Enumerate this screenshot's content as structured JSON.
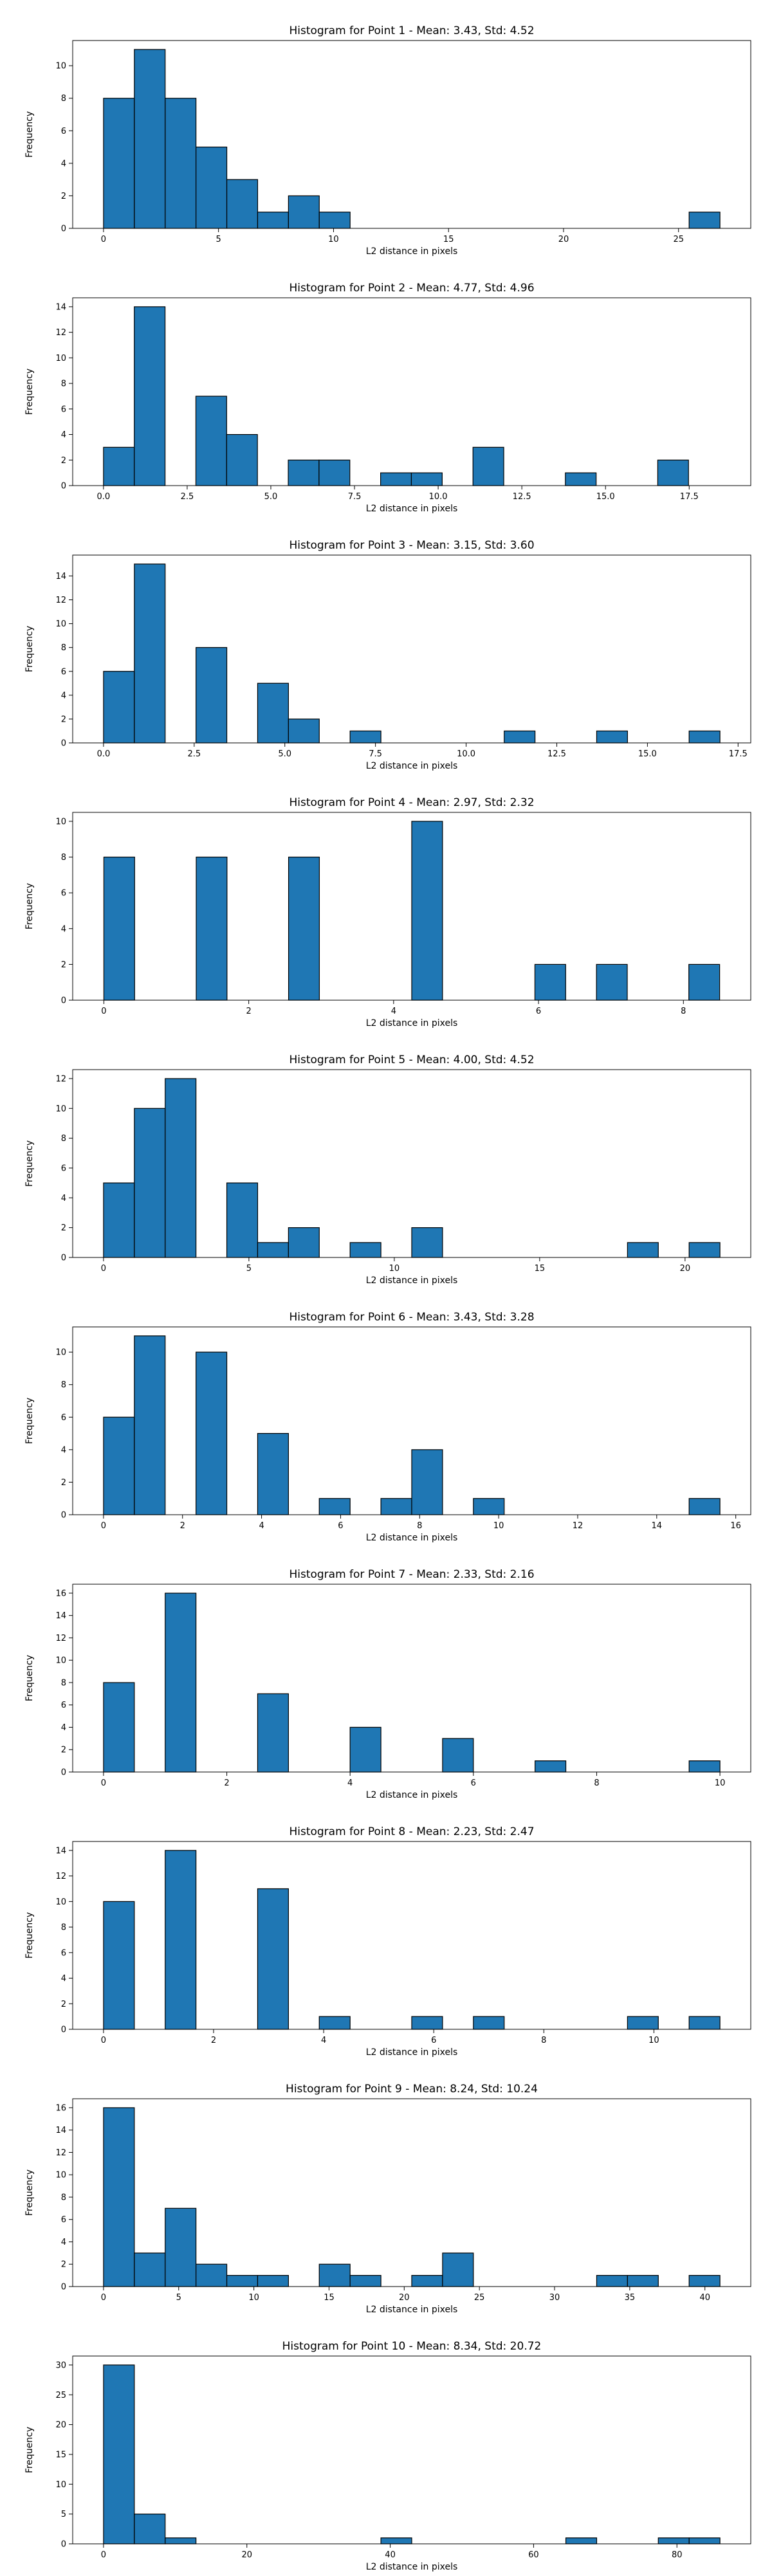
{
  "figure": {
    "bar_color": "#1f77b4",
    "edge_color": "#000000"
  },
  "chart_data": [
    {
      "type": "bar",
      "title": "Histogram for Point 1 - Mean: 3.43, Std: 4.52",
      "xlabel": "L2 distance in pixels",
      "ylabel": "Frequency",
      "xlim": [
        -1.34,
        28.14
      ],
      "ylim": [
        0,
        11.55
      ],
      "xticks": [
        0,
        5,
        10,
        15,
        20,
        25
      ],
      "xtick_labels": [
        "0",
        "5",
        "10",
        "15",
        "20",
        "25"
      ],
      "yticks": [
        0,
        2,
        4,
        6,
        8,
        10
      ],
      "ytick_labels": [
        "0",
        "2",
        "4",
        "6",
        "8",
        "10"
      ],
      "bin_edges": [
        0,
        1.34,
        2.68,
        4.02,
        5.36,
        6.7,
        8.04,
        9.38,
        10.72,
        12.06,
        13.4,
        14.74,
        16.08,
        17.42,
        18.76,
        20.1,
        21.44,
        22.78,
        24.12,
        25.46,
        26.8
      ],
      "values": [
        8,
        11,
        8,
        5,
        3,
        1,
        2,
        1,
        0,
        0,
        0,
        0,
        0,
        0,
        0,
        0,
        0,
        0,
        0,
        1
      ]
    },
    {
      "type": "bar",
      "title": "Histogram for Point 2 - Mean: 4.77, Std: 4.96",
      "xlabel": "L2 distance in pixels",
      "ylabel": "Frequency",
      "xlim": [
        -0.92,
        19.34
      ],
      "ylim": [
        0,
        14.7
      ],
      "xticks": [
        0,
        2.5,
        5,
        7.5,
        10,
        12.5,
        15,
        17.5
      ],
      "xtick_labels": [
        "0.0",
        "2.5",
        "5.0",
        "7.5",
        "10.0",
        "12.5",
        "15.0",
        "17.5"
      ],
      "yticks": [
        0,
        2,
        4,
        6,
        8,
        10,
        12,
        14
      ],
      "ytick_labels": [
        "0",
        "2",
        "4",
        "6",
        "8",
        "10",
        "12",
        "14"
      ],
      "bin_edges": [
        0,
        0.92,
        1.84,
        2.76,
        3.68,
        4.6,
        5.52,
        6.44,
        7.36,
        8.28,
        9.2,
        10.12,
        11.04,
        11.96,
        12.88,
        13.8,
        14.72,
        15.64,
        16.56,
        17.48,
        18.4
      ],
      "values": [
        3,
        14,
        0,
        7,
        4,
        0,
        2,
        2,
        0,
        1,
        1,
        0,
        3,
        0,
        0,
        1,
        0,
        0,
        2,
        0
      ]
    },
    {
      "type": "bar",
      "title": "Histogram for Point 3 - Mean: 3.15, Std: 3.60",
      "xlabel": "L2 distance in pixels",
      "ylabel": "Frequency",
      "xlim": [
        -0.85,
        17.85
      ],
      "ylim": [
        0,
        15.75
      ],
      "xticks": [
        0,
        2.5,
        5,
        7.5,
        10,
        12.5,
        15,
        17.5
      ],
      "xtick_labels": [
        "0.0",
        "2.5",
        "5.0",
        "7.5",
        "10.0",
        "12.5",
        "15.0",
        "17.5"
      ],
      "yticks": [
        0,
        2,
        4,
        6,
        8,
        10,
        12,
        14
      ],
      "ytick_labels": [
        "0",
        "2",
        "4",
        "6",
        "8",
        "10",
        "12",
        "14"
      ],
      "bin_edges": [
        0,
        0.85,
        1.7,
        2.55,
        3.4,
        4.25,
        5.1,
        5.95,
        6.8,
        7.65,
        8.5,
        9.35,
        10.2,
        11.05,
        11.9,
        12.75,
        13.6,
        14.45,
        15.3,
        16.15,
        17.0
      ],
      "values": [
        6,
        15,
        0,
        8,
        0,
        5,
        2,
        0,
        1,
        0,
        0,
        0,
        0,
        1,
        0,
        0,
        1,
        0,
        0,
        1
      ]
    },
    {
      "type": "bar",
      "title": "Histogram for Point 4 - Mean: 2.97, Std: 2.32",
      "xlabel": "L2 distance in pixels",
      "ylabel": "Frequency",
      "xlim": [
        -0.43,
        8.93
      ],
      "ylim": [
        0,
        10.5
      ],
      "xticks": [
        0,
        2,
        4,
        6,
        8
      ],
      "xtick_labels": [
        "0",
        "2",
        "4",
        "6",
        "8"
      ],
      "yticks": [
        0,
        2,
        4,
        6,
        8,
        10
      ],
      "ytick_labels": [
        "0",
        "2",
        "4",
        "6",
        "8",
        "10"
      ],
      "bin_edges": [
        0,
        0.425,
        0.85,
        1.275,
        1.7,
        2.125,
        2.55,
        2.975,
        3.4,
        3.825,
        4.25,
        4.675,
        5.1,
        5.525,
        5.95,
        6.375,
        6.8,
        7.225,
        7.65,
        8.075,
        8.5
      ],
      "values": [
        8,
        0,
        0,
        8,
        0,
        0,
        8,
        0,
        0,
        0,
        10,
        0,
        0,
        0,
        2,
        0,
        2,
        0,
        0,
        2
      ]
    },
    {
      "type": "bar",
      "title": "Histogram for Point 5 - Mean: 4.00, Std: 4.52",
      "xlabel": "L2 distance in pixels",
      "ylabel": "Frequency",
      "xlim": [
        -1.06,
        22.26
      ],
      "ylim": [
        0,
        12.6
      ],
      "xticks": [
        0,
        5,
        10,
        15,
        20
      ],
      "xtick_labels": [
        "0",
        "5",
        "10",
        "15",
        "20"
      ],
      "yticks": [
        0,
        2,
        4,
        6,
        8,
        10,
        12
      ],
      "ytick_labels": [
        "0",
        "2",
        "4",
        "6",
        "8",
        "10",
        "12"
      ],
      "bin_edges": [
        0,
        1.06,
        2.12,
        3.18,
        4.24,
        5.3,
        6.36,
        7.42,
        8.48,
        9.54,
        10.6,
        11.66,
        12.72,
        13.78,
        14.84,
        15.9,
        16.96,
        18.02,
        19.08,
        20.14,
        21.2
      ],
      "values": [
        5,
        10,
        12,
        0,
        5,
        1,
        2,
        0,
        1,
        0,
        2,
        0,
        0,
        0,
        0,
        0,
        0,
        1,
        0,
        1
      ]
    },
    {
      "type": "bar",
      "title": "Histogram for Point 6 - Mean: 3.43, Std: 3.28",
      "xlabel": "L2 distance in pixels",
      "ylabel": "Frequency",
      "xlim": [
        -0.78,
        16.38
      ],
      "ylim": [
        0,
        11.55
      ],
      "xticks": [
        0,
        2,
        4,
        6,
        8,
        10,
        12,
        14,
        16
      ],
      "xtick_labels": [
        "0",
        "2",
        "4",
        "6",
        "8",
        "10",
        "12",
        "14",
        "16"
      ],
      "yticks": [
        0,
        2,
        4,
        6,
        8,
        10
      ],
      "ytick_labels": [
        "0",
        "2",
        "4",
        "6",
        "8",
        "10"
      ],
      "bin_edges": [
        0,
        0.78,
        1.56,
        2.34,
        3.12,
        3.9,
        4.68,
        5.46,
        6.24,
        7.02,
        7.8,
        8.58,
        9.36,
        10.14,
        10.92,
        11.7,
        12.48,
        13.26,
        14.04,
        14.82,
        15.6
      ],
      "values": [
        6,
        11,
        0,
        10,
        0,
        5,
        0,
        1,
        0,
        1,
        4,
        0,
        1,
        0,
        0,
        0,
        0,
        0,
        0,
        1
      ]
    },
    {
      "type": "bar",
      "title": "Histogram for Point 7 - Mean: 2.33, Std: 2.16",
      "xlabel": "L2 distance in pixels",
      "ylabel": "Frequency",
      "xlim": [
        -0.5,
        10.5
      ],
      "ylim": [
        0,
        16.8
      ],
      "xticks": [
        0,
        2,
        4,
        6,
        8,
        10
      ],
      "xtick_labels": [
        "0",
        "2",
        "4",
        "6",
        "8",
        "10"
      ],
      "yticks": [
        0,
        2,
        4,
        6,
        8,
        10,
        12,
        14,
        16
      ],
      "ytick_labels": [
        "0",
        "2",
        "4",
        "6",
        "8",
        "10",
        "12",
        "14",
        "16"
      ],
      "bin_edges": [
        0,
        0.5,
        1.0,
        1.5,
        2.0,
        2.5,
        3.0,
        3.5,
        4.0,
        4.5,
        5.0,
        5.5,
        6.0,
        6.5,
        7.0,
        7.5,
        8.0,
        8.5,
        9.0,
        9.5,
        10.0
      ],
      "values": [
        8,
        0,
        16,
        0,
        0,
        7,
        0,
        0,
        4,
        0,
        0,
        3,
        0,
        0,
        1,
        0,
        0,
        0,
        0,
        1
      ]
    },
    {
      "type": "bar",
      "title": "Histogram for Point 8 - Mean: 2.23, Std: 2.47",
      "xlabel": "L2 distance in pixels",
      "ylabel": "Frequency",
      "xlim": [
        -0.56,
        11.76
      ],
      "ylim": [
        0,
        14.7
      ],
      "xticks": [
        0,
        2,
        4,
        6,
        8,
        10
      ],
      "xtick_labels": [
        "0",
        "2",
        "4",
        "6",
        "8",
        "10"
      ],
      "yticks": [
        0,
        2,
        4,
        6,
        8,
        10,
        12,
        14
      ],
      "ytick_labels": [
        "0",
        "2",
        "4",
        "6",
        "8",
        "10",
        "12",
        "14"
      ],
      "bin_edges": [
        0,
        0.56,
        1.12,
        1.68,
        2.24,
        2.8,
        3.36,
        3.92,
        4.48,
        5.04,
        5.6,
        6.16,
        6.72,
        7.28,
        7.84,
        8.4,
        8.96,
        9.52,
        10.08,
        10.64,
        11.2
      ],
      "values": [
        10,
        0,
        14,
        0,
        0,
        11,
        0,
        1,
        0,
        0,
        1,
        0,
        1,
        0,
        0,
        0,
        0,
        1,
        0,
        1
      ]
    },
    {
      "type": "bar",
      "title": "Histogram for Point 9 - Mean: 8.24, Std: 10.24",
      "xlabel": "L2 distance in pixels",
      "ylabel": "Frequency",
      "xlim": [
        -2.05,
        43.05
      ],
      "ylim": [
        0,
        16.8
      ],
      "xticks": [
        0,
        5,
        10,
        15,
        20,
        25,
        30,
        35,
        40
      ],
      "xtick_labels": [
        "0",
        "5",
        "10",
        "15",
        "20",
        "25",
        "30",
        "35",
        "40"
      ],
      "yticks": [
        0,
        2,
        4,
        6,
        8,
        10,
        12,
        14,
        16
      ],
      "ytick_labels": [
        "0",
        "2",
        "4",
        "6",
        "8",
        "10",
        "12",
        "14",
        "16"
      ],
      "bin_edges": [
        0,
        2.05,
        4.1,
        6.15,
        8.2,
        10.25,
        12.3,
        14.35,
        16.4,
        18.45,
        20.5,
        22.55,
        24.6,
        26.65,
        28.7,
        30.75,
        32.8,
        34.85,
        36.9,
        38.95,
        41.0
      ],
      "values": [
        16,
        3,
        7,
        2,
        1,
        1,
        0,
        2,
        1,
        0,
        1,
        3,
        0,
        0,
        0,
        0,
        1,
        1,
        0,
        1
      ]
    },
    {
      "type": "bar",
      "title": "Histogram for Point 10 - Mean: 8.34, Std: 20.72",
      "xlabel": "L2 distance in pixels",
      "ylabel": "Frequency",
      "xlim": [
        -4.3,
        90.3
      ],
      "ylim": [
        0,
        31.5
      ],
      "xticks": [
        0,
        20,
        40,
        60,
        80
      ],
      "xtick_labels": [
        "0",
        "20",
        "40",
        "60",
        "80"
      ],
      "yticks": [
        0,
        5,
        10,
        15,
        20,
        25,
        30
      ],
      "ytick_labels": [
        "0",
        "5",
        "10",
        "15",
        "20",
        "25",
        "30"
      ],
      "bin_edges": [
        0,
        4.3,
        8.6,
        12.9,
        17.2,
        21.5,
        25.8,
        30.1,
        34.4,
        38.7,
        43.0,
        47.3,
        51.6,
        55.9,
        60.2,
        64.5,
        68.8,
        73.1,
        77.4,
        81.7,
        86.0
      ],
      "values": [
        30,
        5,
        1,
        0,
        0,
        0,
        0,
        0,
        0,
        1,
        0,
        0,
        0,
        0,
        0,
        1,
        0,
        0,
        1,
        1
      ]
    }
  ]
}
